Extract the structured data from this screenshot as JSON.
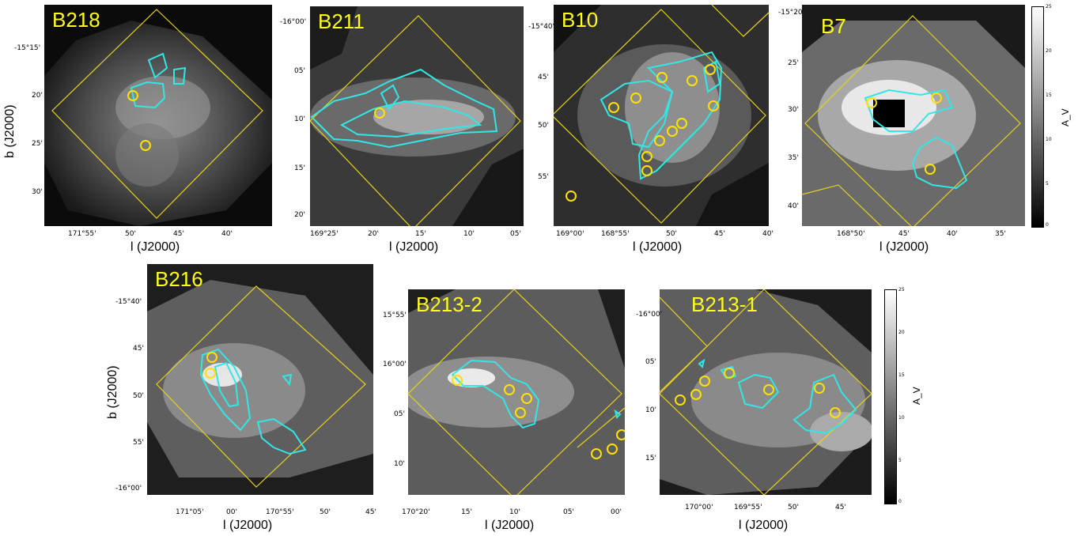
{
  "chart_data": [
    {
      "type": "heatmap",
      "title": "B218",
      "xlabel": "l (J2000)",
      "ylabel": "b (J2000)",
      "x_tick_labels": [
        "171°55'",
        "50'",
        "45'",
        "40'"
      ],
      "y_tick_labels": [
        "-15°15'",
        "20'",
        "25'",
        "30'"
      ],
      "circles": [
        {
          "l": "171°50.2'",
          "b": "-15°20.4'"
        },
        {
          "l": "171°48.8'",
          "b": "-15°25.4'"
        }
      ]
    },
    {
      "type": "heatmap",
      "title": "B211",
      "xlabel": "l (J2000)",
      "x_tick_labels": [
        "169°25'",
        "20'",
        "15'",
        "10'",
        "05'"
      ],
      "y_tick_labels": [
        "-16°00'",
        "05'",
        "10'",
        "15'",
        "20'"
      ],
      "circles": [
        {
          "l": "169°19.2'",
          "b": "-16°09.5'"
        }
      ]
    },
    {
      "type": "heatmap",
      "title": "B10",
      "xlabel": "l (J2000)",
      "x_tick_labels": [
        "169°00'",
        "168°55'",
        "50'",
        "45'",
        "40'"
      ],
      "y_tick_labels": [
        "-15°40'",
        "45'",
        "50'",
        "55'"
      ],
      "circles": [
        {
          "l": "168°57.2'",
          "b": "-15°48.2'"
        }
      ]
    },
    {
      "type": "heatmap",
      "title": "B7",
      "xlabel": "l (J2000)",
      "x_tick_labels": [
        "168°50'",
        "45'",
        "40'",
        "35'"
      ],
      "y_tick_labels": [
        "-15°20'",
        "25'",
        "30'",
        "35'",
        "40'"
      ],
      "circles": [
        {
          "l": "168°47.5'",
          "b": "-15°29.4'"
        }
      ]
    },
    {
      "type": "heatmap",
      "title": "B216",
      "xlabel": "l (J2000)",
      "ylabel": "b (J2000)",
      "x_tick_labels": [
        "171°05'",
        "00'",
        "170°55'",
        "50'",
        "45'"
      ],
      "y_tick_labels": [
        "-15°40'",
        "45'",
        "50'",
        "55'",
        "-16°00'"
      ],
      "circles": [
        {
          "l": "171°01.3'",
          "b": "-15°46.6'"
        }
      ]
    },
    {
      "type": "heatmap",
      "title": "B213-2",
      "xlabel": "l (J2000)",
      "x_tick_labels": [
        "170°20'",
        "15'",
        "10'",
        "05'",
        "00'"
      ],
      "y_tick_labels": [
        "15°55'",
        "16°00'",
        "05'",
        "10'"
      ],
      "circles": [
        {
          "l": "170°15.8'",
          "b": "16°01.3'"
        }
      ]
    },
    {
      "type": "heatmap",
      "title": "B213-1",
      "xlabel": "l (J2000)",
      "x_tick_labels": [
        "170°00'",
        "169°55'",
        "50'",
        "45'"
      ],
      "y_tick_labels": [
        "-16°00'",
        "05'",
        "10'",
        "15'"
      ],
      "circles": [
        {
          "l": "169°58.2'",
          "b": "-16°07.5'"
        }
      ]
    }
  ],
  "colorbar": {
    "label": "A_V",
    "ticks": [
      "0",
      "5",
      "10",
      "15",
      "20",
      "25"
    ],
    "range": [
      0,
      25
    ],
    "colormap": "gray"
  },
  "colors": {
    "label": "#ffff1a",
    "outline": "#e6d21e",
    "contour": "#33e6e6",
    "circle": "#ffe100"
  }
}
